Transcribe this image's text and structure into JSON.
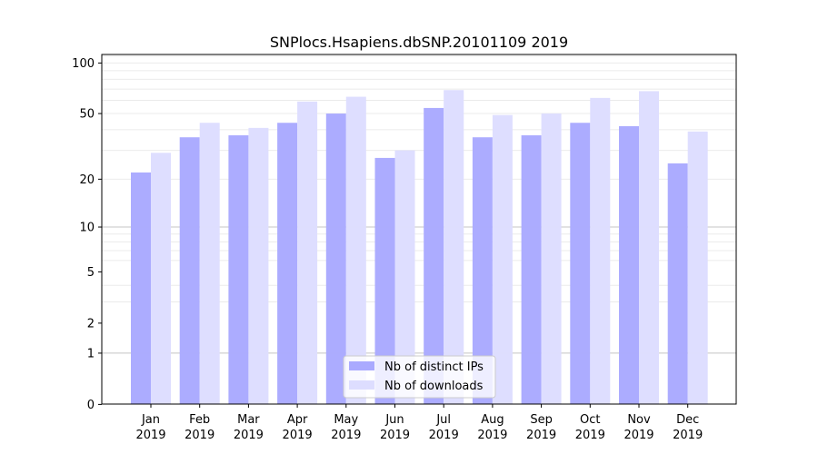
{
  "chart_data": {
    "type": "bar",
    "title": "SNPlocs.Hsapiens.dbSNP.20101109 2019",
    "xlabel": "",
    "ylabel": "",
    "yscale": "symlog",
    "ylim": [
      0,
      112
    ],
    "yticks": [
      0,
      1,
      2,
      5,
      10,
      20,
      50,
      100
    ],
    "grid": true,
    "legend_position": "bottom-center",
    "categories": [
      [
        "Jan",
        "2019"
      ],
      [
        "Feb",
        "2019"
      ],
      [
        "Mar",
        "2019"
      ],
      [
        "Apr",
        "2019"
      ],
      [
        "May",
        "2019"
      ],
      [
        "Jun",
        "2019"
      ],
      [
        "Jul",
        "2019"
      ],
      [
        "Aug",
        "2019"
      ],
      [
        "Sep",
        "2019"
      ],
      [
        "Oct",
        "2019"
      ],
      [
        "Nov",
        "2019"
      ],
      [
        "Dec",
        "2019"
      ]
    ],
    "series": [
      {
        "name": "Nb of distinct IPs",
        "color": "#aaaaff",
        "values": [
          22,
          36,
          37,
          44,
          50,
          27,
          54,
          36,
          37,
          44,
          42,
          25
        ]
      },
      {
        "name": "Nb of downloads",
        "color": "#ddddff",
        "values": [
          29,
          44,
          41,
          59,
          63,
          30,
          69,
          49,
          50,
          62,
          68,
          39
        ]
      }
    ]
  }
}
